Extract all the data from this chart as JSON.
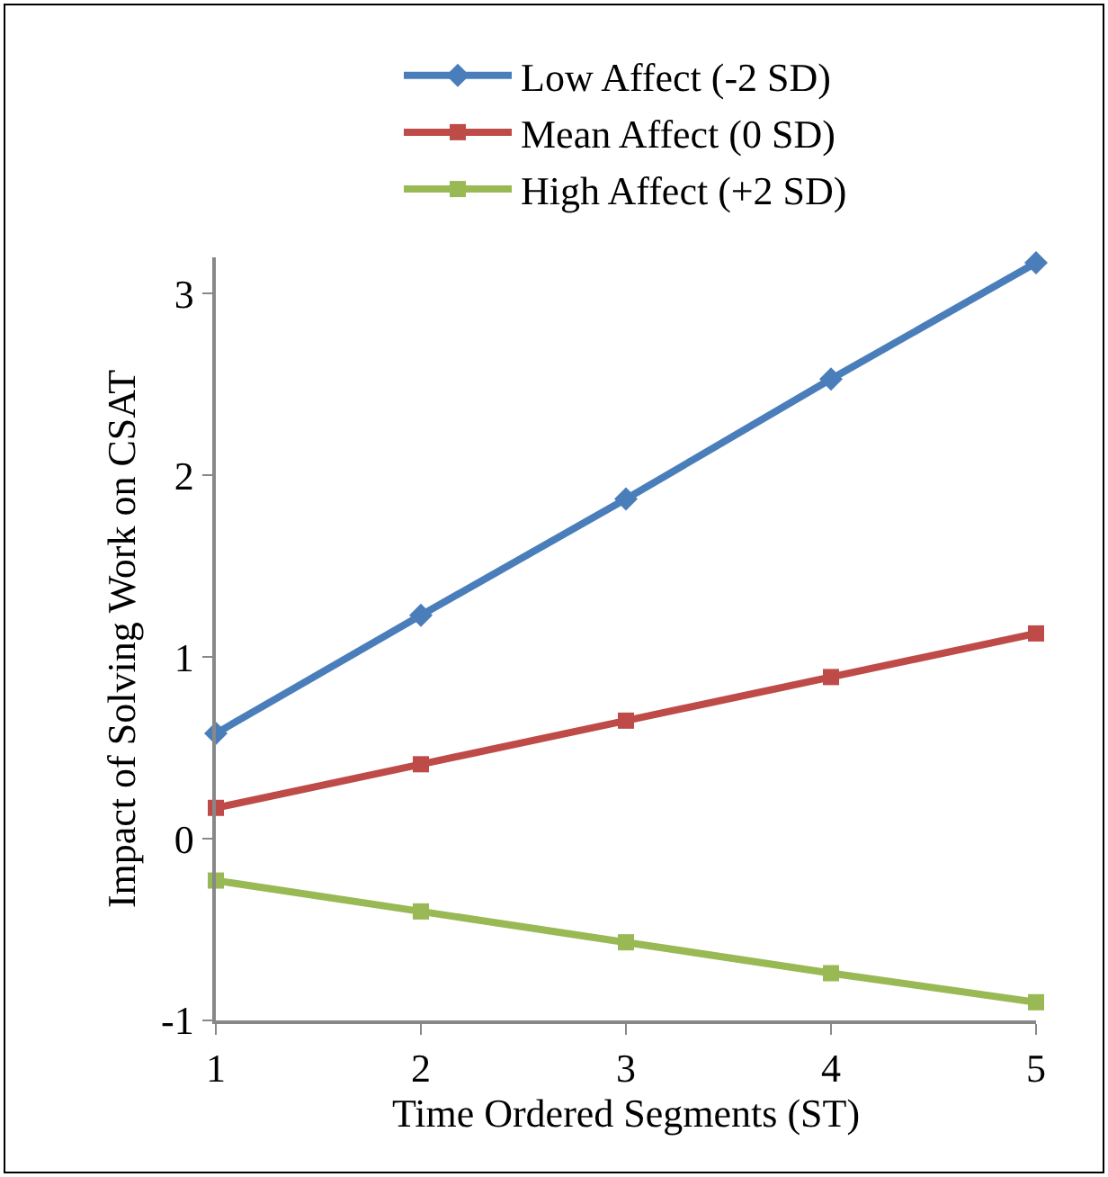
{
  "chart_data": {
    "type": "line",
    "xlabel": "Time Ordered Segments (ST)",
    "ylabel": "Impact of Solving Work on CSAT",
    "x": [
      1,
      2,
      3,
      4,
      5
    ],
    "series": [
      {
        "name": "Low Affect (-2 SD)",
        "color": "#4a7ebb",
        "marker": "diamond",
        "values": [
          0.58,
          1.23,
          1.87,
          2.53,
          3.17
        ]
      },
      {
        "name": "Mean Affect (0 SD)",
        "color": "#be4b48",
        "marker": "square",
        "values": [
          0.17,
          0.41,
          0.65,
          0.89,
          1.13
        ]
      },
      {
        "name": "High Affect (+2 SD)",
        "color": "#98b954",
        "marker": "square",
        "values": [
          -0.23,
          -0.4,
          -0.57,
          -0.74,
          -0.9
        ]
      }
    ],
    "xlim": [
      1,
      5
    ],
    "xticks": [
      1,
      2,
      3,
      4,
      5
    ],
    "ylim": [
      -1,
      3.2
    ],
    "yticks": [
      -1,
      0,
      1,
      2,
      3
    ],
    "grid": false,
    "legend": "top",
    "line_style": "solid"
  }
}
